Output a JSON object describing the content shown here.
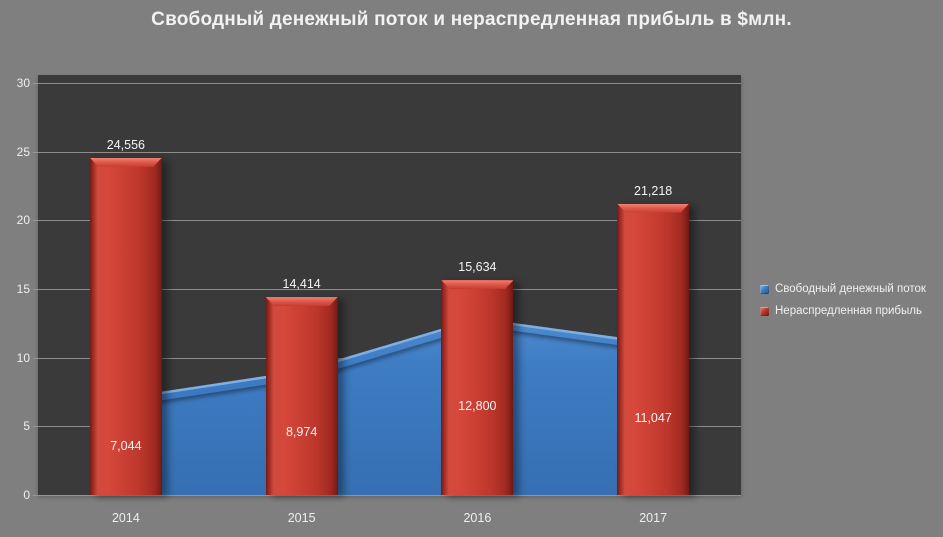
{
  "chart_data": {
    "type": "combo (area + bar)",
    "title": "Свободный денежный поток и нераспредленная прибыль в $млн.",
    "categories": [
      "2014",
      "2015",
      "2016",
      "2017"
    ],
    "series": [
      {
        "name": "Свободный денежный поток",
        "type": "area",
        "values": [
          7044,
          8974,
          12800,
          11047
        ],
        "labels": [
          "7,044",
          "8,974",
          "12,800",
          "11,047"
        ],
        "color": "#3e7cc4"
      },
      {
        "name": "Нераспредленная прибыль",
        "type": "bar",
        "values": [
          24556,
          14414,
          15634,
          21218
        ],
        "labels": [
          "24,556",
          "14,414",
          "15,634",
          "21,218"
        ],
        "color": "#c0382d"
      }
    ],
    "value_scale_note": "axis shows thousands: 24,556 plots at 24.556",
    "ylim": [
      0,
      30
    ],
    "yticks": [
      30,
      25,
      20,
      15,
      10,
      5,
      0
    ],
    "grid": true,
    "legend_position": "right"
  },
  "colors": {
    "background": "#7f7f7f",
    "plot_background": "#3a3a3a",
    "gridline": "#9c9c9c",
    "text": "#f2f2f2",
    "area_fill": "#3e7cc4",
    "area_edge_highlight": "#7fb0e4",
    "bar_fill": "#c0382d"
  }
}
